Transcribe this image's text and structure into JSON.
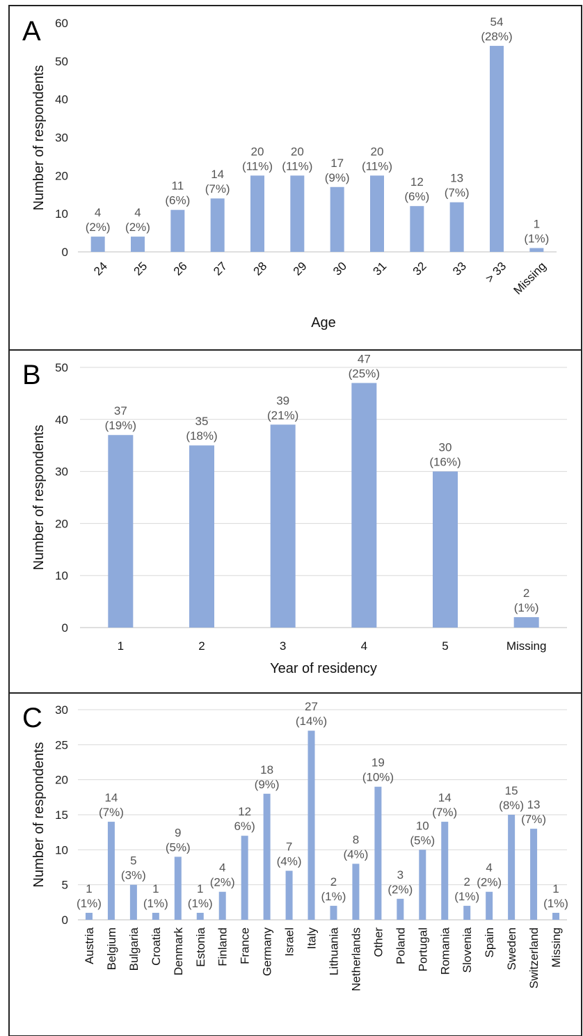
{
  "colors": {
    "bar": "#8eaadb",
    "grid": "#d9d9d9",
    "label": "#555555"
  },
  "chart_data": [
    {
      "type": "bar",
      "panel_label": "A",
      "xlabel": "Age",
      "ylabel": "Number of respondents",
      "ylim": [
        0,
        60
      ],
      "yticks": [
        0,
        10,
        20,
        30,
        40,
        50,
        60
      ],
      "grid": false,
      "rotate_categories": -45,
      "categories": [
        "24",
        "25",
        "26",
        "27",
        "28",
        "29",
        "30",
        "31",
        "32",
        "33",
        "> 33",
        "Missing"
      ],
      "values": [
        4,
        4,
        11,
        14,
        20,
        20,
        17,
        20,
        12,
        13,
        54,
        1
      ],
      "percent_labels": [
        "(2%)",
        "(2%)",
        "(6%)",
        "(7%)",
        "(11%)",
        "(11%)",
        "(9%)",
        "(11%)",
        "(6%)",
        "(7%)",
        "(28%)",
        "(1%)"
      ]
    },
    {
      "type": "bar",
      "panel_label": "B",
      "xlabel": "Year of residency",
      "ylabel": "Number of respondents",
      "ylim": [
        0,
        50
      ],
      "yticks": [
        0,
        10,
        20,
        30,
        40,
        50
      ],
      "grid": true,
      "rotate_categories": 0,
      "categories": [
        "1",
        "2",
        "3",
        "4",
        "5",
        "Missing"
      ],
      "values": [
        37,
        35,
        39,
        47,
        30,
        2
      ],
      "percent_labels": [
        "(19%)",
        "(18%)",
        "(21%)",
        "(25%)",
        "(16%)",
        "(1%)"
      ]
    },
    {
      "type": "bar",
      "panel_label": "C",
      "xlabel": "",
      "ylabel": "Number of respondents",
      "ylim": [
        0,
        30
      ],
      "yticks": [
        0,
        5,
        10,
        15,
        20,
        25,
        30
      ],
      "grid": true,
      "rotate_categories": -90,
      "categories": [
        "Austria",
        "Belgium",
        "Bulgaria",
        "Croatia",
        "Denmark",
        "Estonia",
        "Finland",
        "France",
        "Germany",
        "Israel",
        "Italy",
        "Lithuania",
        "Netherlands",
        "Other",
        "Poland",
        "Portugal",
        "Romania",
        "Slovenia",
        "Spain",
        "Sweden",
        "Switzerland",
        "Missing"
      ],
      "values": [
        1,
        14,
        5,
        1,
        9,
        1,
        4,
        12,
        18,
        7,
        27,
        2,
        8,
        19,
        3,
        10,
        14,
        2,
        4,
        15,
        13,
        1
      ],
      "percent_labels": [
        "(1%)",
        "(7%)",
        "(3%)",
        "(1%)",
        "(5%)",
        "(1%)",
        "(2%)",
        "6%)",
        "(9%)",
        "(4%)",
        "(14%)",
        "(1%)",
        "(4%)",
        "(10%)",
        "(2%)",
        "(5%)",
        "(7%)",
        "(1%)",
        "(2%)",
        "(8%)",
        "(7%)",
        "(1%)"
      ]
    }
  ]
}
